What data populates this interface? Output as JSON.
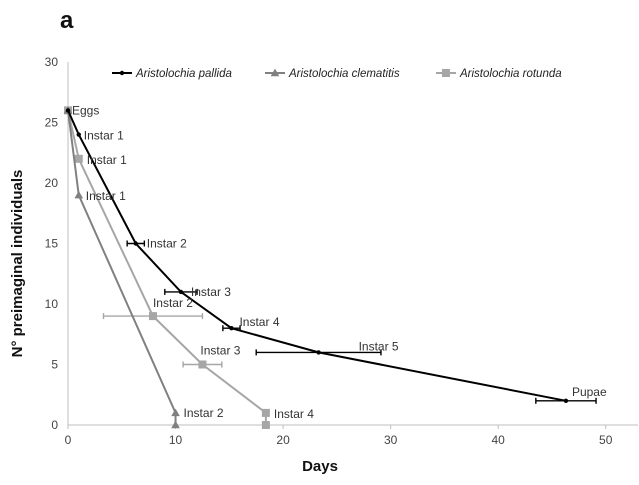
{
  "chart_data": {
    "type": "line",
    "panel_label": "a",
    "title": "",
    "xlabel": "Days",
    "ylabel": "N° preimaginal individuals",
    "xlim": [
      0,
      53
    ],
    "ylim": [
      0,
      30
    ],
    "x_ticks": [
      0,
      10,
      20,
      30,
      40,
      50
    ],
    "y_ticks": [
      0,
      5,
      10,
      15,
      20,
      25,
      30
    ],
    "grid": false,
    "legend_position": "top",
    "series": [
      {
        "name": "Aristolochia pallida",
        "color": "#000000",
        "marker": "circle",
        "points": [
          {
            "x": 0,
            "y": 26,
            "label": "Eggs",
            "xerr": 0
          },
          {
            "x": 1,
            "y": 24,
            "label": "Instar 1",
            "xerr": 0
          },
          {
            "x": 6.3,
            "y": 15,
            "label": "Instar 2",
            "xerr": 0.8
          },
          {
            "x": 10.5,
            "y": 11,
            "label": "Instar 3",
            "xerr": 1.5
          },
          {
            "x": 15.2,
            "y": 8,
            "label": "Instar 4",
            "xerr": 0.8
          },
          {
            "x": 23.3,
            "y": 6,
            "label": "Instar 5",
            "xerr": 5.8
          },
          {
            "x": 46.3,
            "y": 2,
            "label": "Pupae",
            "xerr": 2.8
          }
        ]
      },
      {
        "name": "Aristolochia clematitis",
        "color": "#808080",
        "marker": "triangle",
        "points": [
          {
            "x": 0,
            "y": 26,
            "label": "",
            "xerr": 0
          },
          {
            "x": 1,
            "y": 19,
            "label": "Instar 1",
            "xerr": 0
          },
          {
            "x": 10,
            "y": 1,
            "label": "Instar 2",
            "xerr": 0
          },
          {
            "x": 10,
            "y": 0,
            "label": "",
            "xerr": 0
          }
        ]
      },
      {
        "name": "Aristolochia rotunda",
        "color": "#a6a6a6",
        "marker": "square",
        "points": [
          {
            "x": 0,
            "y": 26,
            "label": "",
            "xerr": 0
          },
          {
            "x": 1,
            "y": 22,
            "label": "Instar 1",
            "xerr": 0
          },
          {
            "x": 7.9,
            "y": 9,
            "label": "Instar 2",
            "xerr": 4.6
          },
          {
            "x": 12.5,
            "y": 5,
            "label": "Instar 3",
            "xerr": 1.8
          },
          {
            "x": 18.4,
            "y": 1,
            "label": "Instar 4",
            "xerr": 0
          },
          {
            "x": 18.4,
            "y": 0,
            "label": "",
            "xerr": 0
          }
        ]
      }
    ]
  }
}
